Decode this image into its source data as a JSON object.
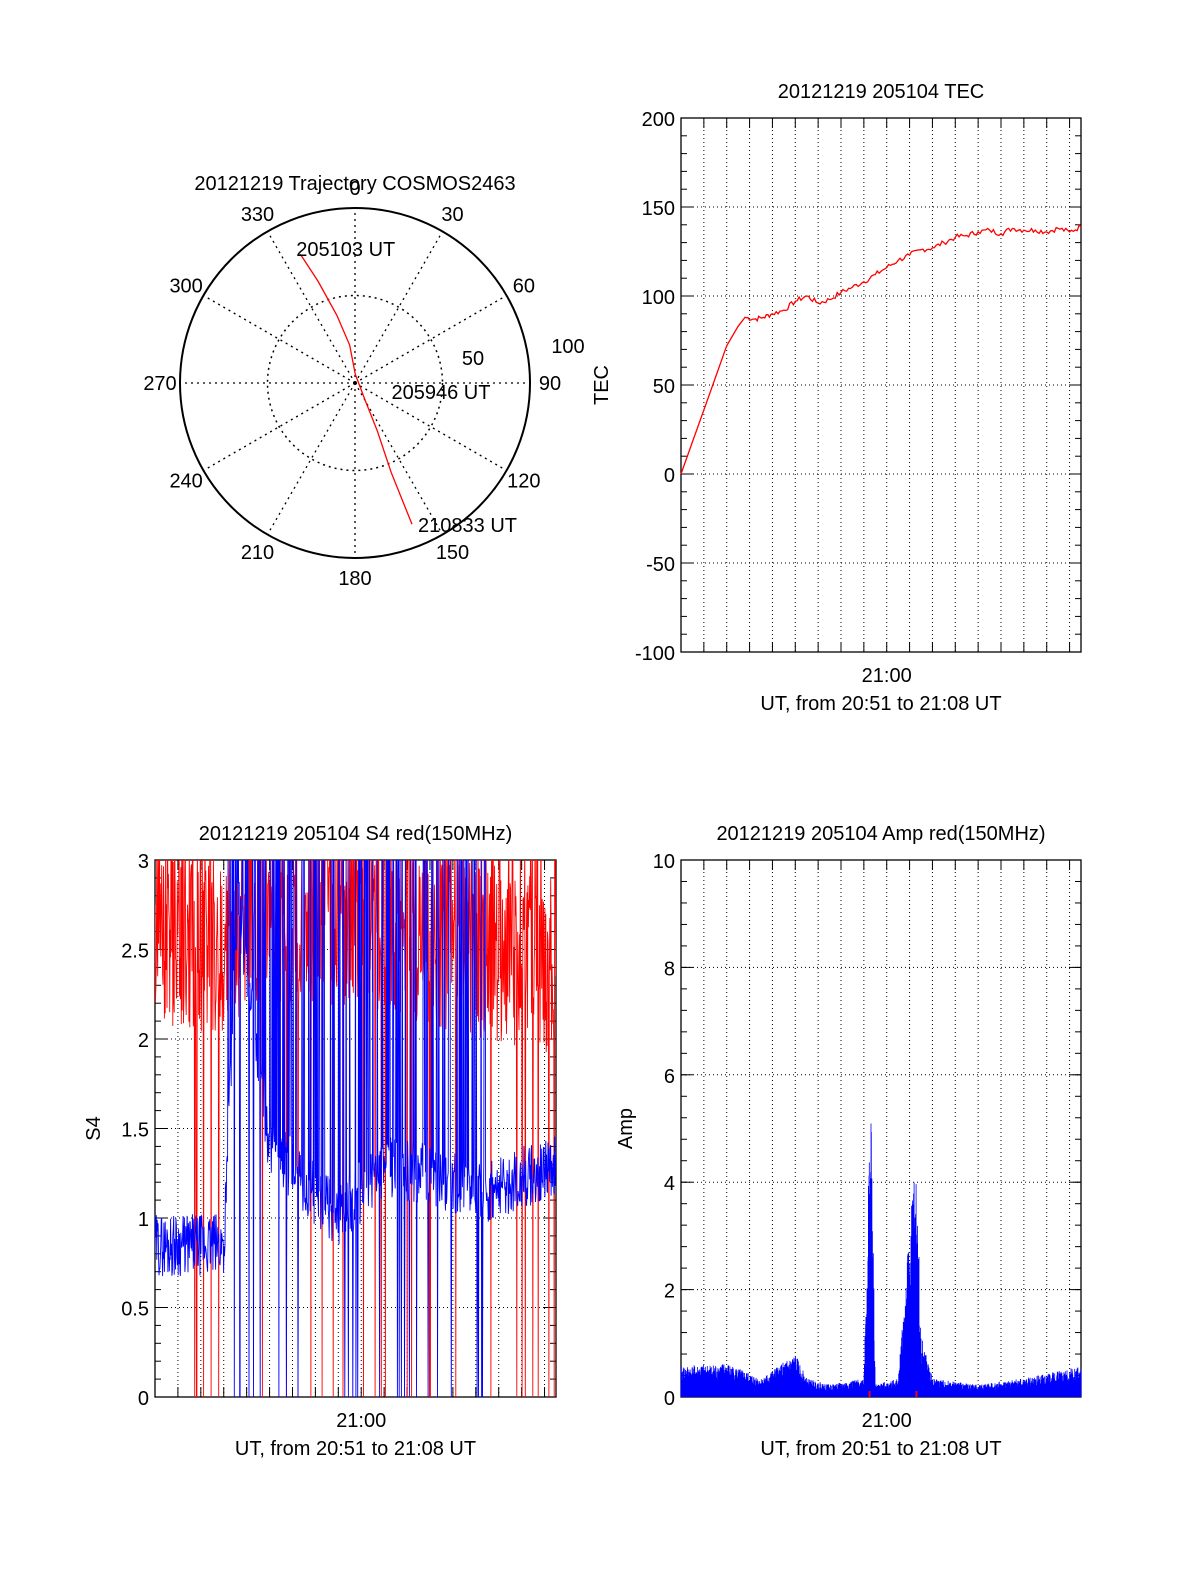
{
  "chart_data": [
    {
      "type": "polar",
      "title": "20121219 Trajectory COSMOS2463",
      "azimuth_labels": [
        "0",
        "30",
        "60",
        "90",
        "120",
        "150",
        "180",
        "210",
        "240",
        "270",
        "300",
        "330"
      ],
      "radius_labels": [
        "50",
        "100"
      ],
      "rmax": 100,
      "track": {
        "color": "#ff0000",
        "points": [
          {
            "az": 337,
            "r": 80
          },
          {
            "az": 340,
            "r": 62
          },
          {
            "az": 345,
            "r": 40
          },
          {
            "az": 352,
            "r": 22
          },
          {
            "az": 2,
            "r": 5
          },
          {
            "az": 150,
            "r": 12
          },
          {
            "az": 155,
            "r": 30
          },
          {
            "az": 158,
            "r": 55
          },
          {
            "az": 158,
            "r": 80
          },
          {
            "az": 158,
            "r": 87
          }
        ],
        "labels": [
          {
            "text": "205103 UT",
            "az": 337,
            "r": 80
          },
          {
            "text": "205946 UT",
            "az": 150,
            "r": 12
          },
          {
            "text": "210833 UT",
            "az": 158,
            "r": 87
          }
        ]
      }
    },
    {
      "type": "line",
      "title": "20121219 205104 TEC",
      "ylabel": "TEC",
      "xlabel": "UT, from 20:51 to 21:08 UT",
      "ylim": [
        -100,
        200
      ],
      "yticks": [
        "-100",
        "-50",
        "0",
        "50",
        "100",
        "150",
        "200"
      ],
      "xtick_label": "21:00",
      "xtick_minute": 9,
      "xrange_minutes": [
        0,
        17.5
      ],
      "grid": true,
      "series": [
        {
          "color": "#ff0000",
          "x": [
            0,
            0.5,
            1.0,
            1.5,
            2.0,
            2.5,
            2.8,
            3.2,
            3.6,
            4.0,
            4.5,
            5.0,
            5.5,
            6.0,
            6.5,
            7.0,
            7.5,
            8.0,
            8.5,
            9.0,
            9.5,
            10.0,
            10.5,
            11.0,
            11.5,
            12.0,
            12.5,
            13.0,
            13.5,
            14.0,
            14.5,
            15.0,
            15.5,
            16.0,
            16.5,
            17.0,
            17.5
          ],
          "y": [
            0,
            18,
            36,
            54,
            72,
            83,
            88,
            87,
            88,
            90,
            92,
            97,
            100,
            96,
            98,
            102,
            105,
            108,
            112,
            116,
            120,
            123,
            126,
            127,
            130,
            133,
            134,
            136,
            137,
            135,
            138,
            137,
            137,
            136,
            138,
            136,
            139
          ]
        }
      ]
    },
    {
      "type": "line",
      "title": "20121219 205104 S4 red(150MHz)",
      "ylabel": "S4",
      "xlabel": "UT, from 20:51 to 21:08 UT",
      "ylim": [
        0,
        3
      ],
      "yticks": [
        "0",
        "0.5",
        "1",
        "1.5",
        "2",
        "2.5",
        "3"
      ],
      "xtick_label": "21:00",
      "xtick_minute": 9,
      "xrange_minutes": [
        0,
        17.5
      ],
      "grid": true,
      "series": [
        {
          "color": "#ff0000",
          "name": "",
          "x": [
            0,
            2.0,
            5.0,
            8.0,
            11.0,
            14.0,
            17.5
          ],
          "y": [
            2.6,
            2.5,
            2.6,
            2.7,
            2.6,
            2.5,
            2.4
          ]
        },
        {
          "color": "#0000ff",
          "name": "",
          "x": [
            0,
            3.0,
            3.6,
            5.0,
            8.0,
            10.0,
            14.5,
            17.5
          ],
          "y": [
            0.85,
            0.85,
            2.8,
            1.4,
            1.0,
            1.3,
            1.15,
            1.3
          ]
        }
      ]
    },
    {
      "type": "line",
      "title": "20121219 205104 Amp red(150MHz)",
      "ylabel": "Amp",
      "xlabel": "UT, from 20:51 to 21:08 UT",
      "ylim": [
        0,
        10
      ],
      "yticks": [
        "0",
        "2",
        "4",
        "6",
        "8",
        "10"
      ],
      "xtick_label": "21:00",
      "xtick_minute": 9,
      "xrange_minutes": [
        0,
        17.5
      ],
      "grid": true,
      "series": [
        {
          "color": "#0000ff",
          "name": "",
          "x": [
            0,
            2.0,
            3.5,
            5.0,
            5.5,
            6.5,
            8.0,
            8.3,
            8.5,
            9.5,
            10.2,
            10.5,
            11.0,
            13.0,
            15.0,
            17.5
          ],
          "y": [
            0.5,
            0.55,
            0.3,
            0.7,
            0.3,
            0.2,
            0.3,
            5.2,
            0.2,
            0.3,
            3.7,
            1.0,
            0.3,
            0.2,
            0.3,
            0.5
          ]
        }
      ]
    }
  ]
}
